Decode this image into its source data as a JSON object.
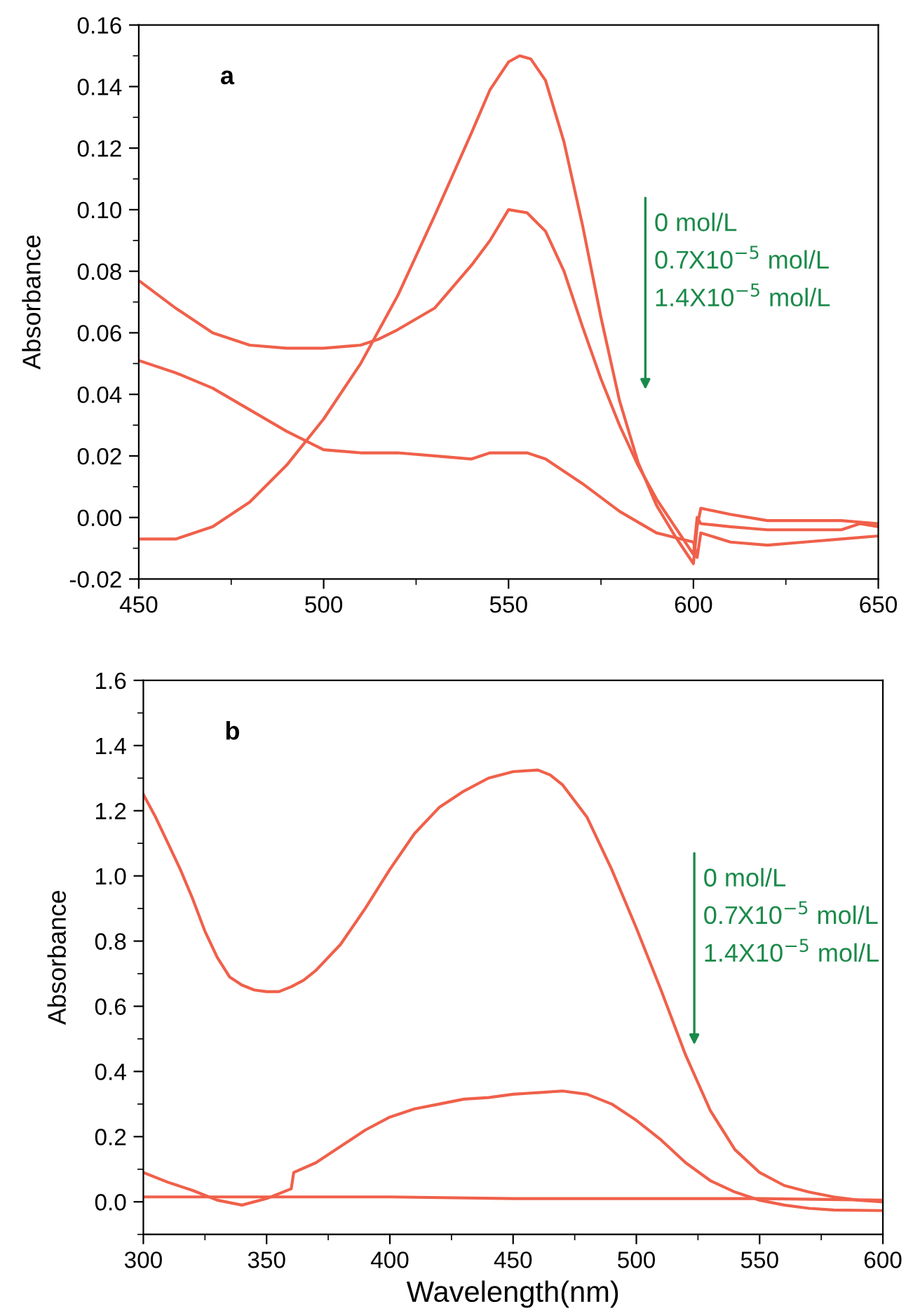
{
  "chart_data": [
    {
      "type": "line",
      "ylabel": "Absorbance",
      "xlim": [
        450,
        650
      ],
      "ylim": [
        -0.02,
        0.16
      ],
      "xticks": [
        450,
        500,
        550,
        600,
        650
      ],
      "yticks": [
        -0.02,
        {
          "value": 0,
          "label": "0.00"
        },
        0.02,
        0.04,
        0.06,
        0.08,
        {
          "value": 0.1,
          "label": "0.10"
        },
        0.12,
        0.14,
        0.16
      ],
      "grid": false,
      "marker": "none",
      "line_style": "solid",
      "annotations": [
        "a",
        "0 mol/L",
        "0.7X10$^{−5}$ mol/L",
        "1.4X10$^{−5}$ mol/L"
      ],
      "series": [
        {
          "color": "#f0604a",
          "x": [
            450,
            460,
            470,
            480,
            490,
            500,
            510,
            515,
            520,
            530,
            540,
            545,
            550,
            555,
            560,
            565,
            570,
            575,
            580,
            585,
            590,
            595,
            600,
            601,
            602,
            610,
            620,
            640,
            645,
            650
          ],
          "values": [
            0.077,
            0.068,
            0.06,
            0.056,
            0.055,
            0.055,
            0.056,
            0.058,
            0.061,
            0.068,
            0.082,
            0.09,
            0.1,
            0.099,
            0.093,
            0.08,
            0.062,
            0.045,
            0.03,
            0.017,
            0.006,
            -0.003,
            -0.012,
            0.0,
            -0.002,
            -0.003,
            -0.004,
            -0.004,
            -0.002,
            -0.003
          ]
        },
        {
          "color": "#f0604a",
          "x": [
            450,
            460,
            470,
            480,
            490,
            500,
            510,
            520,
            530,
            540,
            545,
            550,
            553,
            556,
            560,
            565,
            570,
            575,
            580,
            585,
            590,
            595,
            600,
            601,
            602,
            610,
            620,
            640,
            650
          ],
          "values": [
            -0.007,
            -0.007,
            -0.003,
            0.005,
            0.017,
            0.032,
            0.05,
            0.072,
            0.098,
            0.125,
            0.139,
            0.148,
            0.15,
            0.149,
            0.142,
            0.122,
            0.095,
            0.065,
            0.038,
            0.018,
            0.004,
            -0.006,
            -0.015,
            -0.003,
            0.003,
            0.001,
            -0.001,
            -0.001,
            -0.002
          ]
        },
        {
          "color": "#f0604a",
          "x": [
            450,
            460,
            470,
            480,
            490,
            500,
            510,
            520,
            530,
            540,
            545,
            555,
            560,
            570,
            580,
            590,
            600,
            601,
            602,
            610,
            620,
            630,
            640,
            650
          ],
          "values": [
            0.051,
            0.047,
            0.042,
            0.035,
            0.028,
            0.022,
            0.021,
            0.021,
            0.02,
            0.019,
            0.021,
            0.021,
            0.019,
            0.011,
            0.002,
            -0.005,
            -0.008,
            -0.013,
            -0.005,
            -0.008,
            -0.009,
            -0.008,
            -0.007,
            -0.006
          ]
        }
      ]
    },
    {
      "type": "line",
      "xlabel": "Wavelength(nm)",
      "ylabel": "Absorbance",
      "xlim": [
        300,
        600
      ],
      "ylim": [
        -0.1,
        1.6
      ],
      "xticks": [
        300,
        350,
        400,
        450,
        500,
        550,
        600
      ],
      "yticks": [
        {
          "value": 0,
          "label": "0.0"
        },
        0.2,
        0.4,
        0.6,
        0.8,
        {
          "value": 1,
          "label": "1.0"
        },
        1.2,
        1.4,
        1.6
      ],
      "grid": false,
      "marker": "none",
      "line_style": "solid",
      "annotations": [
        "b",
        "0 mol/L",
        "0.7X10$^{−5}$ mol/L",
        "1.4X10$^{−5}$ mol/L"
      ],
      "series": [
        {
          "color": "#f0604a",
          "x": [
            300,
            305,
            310,
            315,
            320,
            325,
            330,
            335,
            340,
            345,
            350,
            355,
            360,
            365,
            370,
            380,
            390,
            400,
            410,
            420,
            430,
            440,
            450,
            460,
            465,
            470,
            480,
            490,
            500,
            510,
            520,
            530,
            540,
            550,
            560,
            570,
            580,
            590,
            600
          ],
          "values": [
            1.25,
            1.18,
            1.1,
            1.02,
            0.93,
            0.83,
            0.75,
            0.69,
            0.665,
            0.65,
            0.645,
            0.645,
            0.66,
            0.68,
            0.71,
            0.79,
            0.9,
            1.02,
            1.13,
            1.21,
            1.26,
            1.3,
            1.32,
            1.325,
            1.31,
            1.28,
            1.18,
            1.02,
            0.84,
            0.65,
            0.45,
            0.28,
            0.16,
            0.09,
            0.05,
            0.03,
            0.015,
            0.005,
            0.0
          ]
        },
        {
          "color": "#f0604a",
          "x": [
            300,
            310,
            320,
            330,
            340,
            350,
            355,
            360,
            361,
            370,
            380,
            390,
            400,
            410,
            420,
            430,
            440,
            450,
            460,
            470,
            480,
            490,
            500,
            510,
            520,
            530,
            540,
            550,
            560,
            570,
            580,
            600
          ],
          "values": [
            0.09,
            0.06,
            0.035,
            0.005,
            -0.01,
            0.01,
            0.025,
            0.04,
            0.09,
            0.12,
            0.17,
            0.22,
            0.26,
            0.285,
            0.3,
            0.315,
            0.32,
            0.33,
            0.335,
            0.34,
            0.33,
            0.3,
            0.25,
            0.19,
            0.12,
            0.065,
            0.03,
            0.005,
            -0.01,
            -0.02,
            -0.025,
            -0.027
          ]
        },
        {
          "color": "#f0604a",
          "x": [
            300,
            350,
            400,
            450,
            500,
            550,
            600
          ],
          "values": [
            0.015,
            0.015,
            0.015,
            0.01,
            0.01,
            0.01,
            0.005
          ]
        }
      ]
    }
  ]
}
